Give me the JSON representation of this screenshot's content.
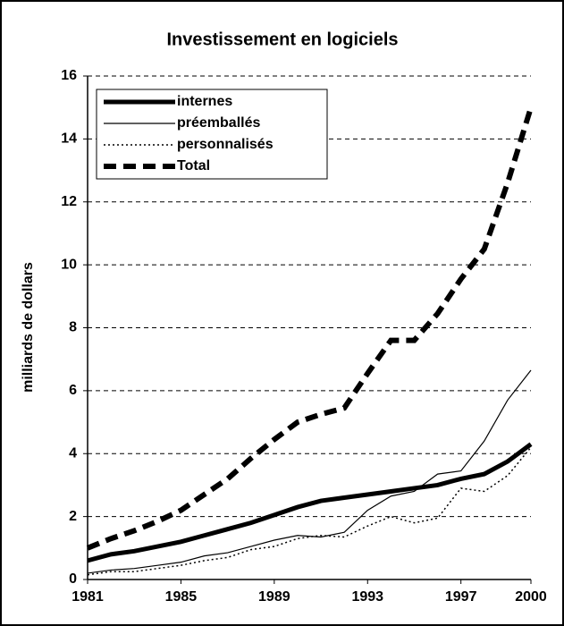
{
  "chart_data": {
    "type": "line",
    "title": "Investissement en logiciels",
    "y_label": "milliards de dollars",
    "x": [
      1981,
      1982,
      1983,
      1984,
      1985,
      1986,
      1987,
      1988,
      1989,
      1990,
      1991,
      1992,
      1993,
      1994,
      1995,
      1996,
      1997,
      1998,
      1999,
      2000
    ],
    "xlim": [
      1981,
      2000
    ],
    "xticks": [
      1981,
      1985,
      1989,
      1993,
      1997,
      2000
    ],
    "ylim": [
      0,
      16
    ],
    "yticks": [
      0,
      2,
      4,
      6,
      8,
      10,
      12,
      14,
      16
    ],
    "grid": true,
    "legend": "top-left",
    "series": [
      {
        "name": "internes",
        "color": "#000000",
        "values": [
          0.6,
          0.8,
          0.9,
          1.05,
          1.2,
          1.4,
          1.6,
          1.8,
          2.05,
          2.3,
          2.5,
          2.6,
          2.7,
          2.8,
          2.9,
          3.0,
          3.2,
          3.35,
          3.75,
          4.3
        ]
      },
      {
        "name": "préemballés",
        "color": "#000000",
        "values": [
          0.2,
          0.3,
          0.35,
          0.45,
          0.55,
          0.75,
          0.85,
          1.05,
          1.25,
          1.4,
          1.35,
          1.5,
          2.2,
          2.65,
          2.8,
          3.35,
          3.45,
          4.4,
          5.7,
          6.65
        ]
      },
      {
        "name": "personnalisés",
        "color": "#000000",
        "values": [
          0.15,
          0.25,
          0.25,
          0.35,
          0.45,
          0.6,
          0.7,
          0.95,
          1.05,
          1.3,
          1.4,
          1.35,
          1.7,
          2.0,
          1.8,
          1.95,
          2.9,
          2.8,
          3.3,
          4.2
        ]
      },
      {
        "name": "Total",
        "color": "#000000",
        "values": [
          1.0,
          1.3,
          1.55,
          1.85,
          2.2,
          2.7,
          3.2,
          3.85,
          4.45,
          5.0,
          5.25,
          5.45,
          6.55,
          7.6,
          7.6,
          8.45,
          9.55,
          10.5,
          12.6,
          15.0
        ]
      }
    ]
  }
}
